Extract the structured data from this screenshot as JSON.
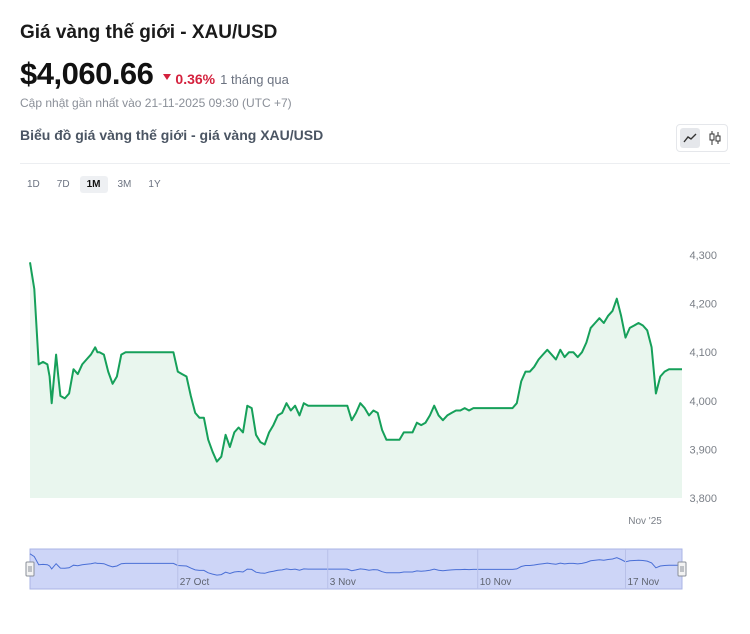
{
  "header": {
    "title": "Giá vàng thế giới - XAU/USD",
    "price": "$4,060.66",
    "change": "0.36%",
    "change_direction": "down",
    "period": "1 tháng qua",
    "updated": "Cập nhật gần nhất vào 21-11-2025 09:30 (UTC +7)"
  },
  "chart_header": {
    "subtitle": "Biểu đồ giá vàng thế giới - giá vàng XAU/USD",
    "toggle_icons": [
      "line-chart-icon",
      "candlestick-icon"
    ]
  },
  "ranges": [
    {
      "label": "1D",
      "active": false
    },
    {
      "label": "7D",
      "active": false
    },
    {
      "label": "1M",
      "active": true
    },
    {
      "label": "3M",
      "active": false
    },
    {
      "label": "1Y",
      "active": false
    }
  ],
  "colors": {
    "line": "#16a05a",
    "area": "#e9f6ee",
    "down": "#d4213d",
    "navigator_fill": "#cdd5f7"
  },
  "chart_data": {
    "type": "area",
    "ylim": [
      3800,
      4300
    ],
    "yticks": [
      "3,800",
      "3,900",
      "4,000",
      "4,100",
      "4,200",
      "4,300"
    ],
    "ytick_values": [
      3800,
      3900,
      4000,
      4100,
      4200,
      4300
    ],
    "xlim": [
      0,
      30
    ],
    "xtick_labels": [
      {
        "t": 28.3,
        "label": "Nov '25"
      }
    ],
    "navigator_labels": [
      {
        "t": 6.8,
        "label": "27 Oct"
      },
      {
        "t": 13.7,
        "label": "3 Nov"
      },
      {
        "t": 20.6,
        "label": "10 Nov"
      },
      {
        "t": 27.4,
        "label": "17 Nov"
      }
    ],
    "series": [
      {
        "values": [
          [
            0,
            4285
          ],
          [
            0.2,
            4230
          ],
          [
            0.4,
            4075
          ],
          [
            0.6,
            4080
          ],
          [
            0.8,
            4075
          ],
          [
            0.9,
            4050
          ],
          [
            1.0,
            3995
          ],
          [
            1.2,
            4095
          ],
          [
            1.3,
            4050
          ],
          [
            1.4,
            4010
          ],
          [
            1.6,
            4005
          ],
          [
            1.8,
            4015
          ],
          [
            2.0,
            4065
          ],
          [
            2.2,
            4055
          ],
          [
            2.4,
            4075
          ],
          [
            2.6,
            4085
          ],
          [
            2.8,
            4095
          ],
          [
            3.0,
            4110
          ],
          [
            3.1,
            4100
          ],
          [
            3.2,
            4100
          ],
          [
            3.4,
            4095
          ],
          [
            3.6,
            4060
          ],
          [
            3.8,
            4035
          ],
          [
            4.0,
            4050
          ],
          [
            4.2,
            4095
          ],
          [
            4.4,
            4100
          ],
          [
            4.6,
            4100
          ],
          [
            5.4,
            4100
          ],
          [
            5.6,
            4100
          ],
          [
            5.8,
            4100
          ],
          [
            6.4,
            4100
          ],
          [
            6.6,
            4100
          ],
          [
            6.8,
            4060
          ],
          [
            7.0,
            4055
          ],
          [
            7.2,
            4050
          ],
          [
            7.4,
            4010
          ],
          [
            7.6,
            3975
          ],
          [
            7.8,
            3965
          ],
          [
            8.0,
            3965
          ],
          [
            8.2,
            3920
          ],
          [
            8.4,
            3895
          ],
          [
            8.6,
            3875
          ],
          [
            8.8,
            3885
          ],
          [
            9.0,
            3930
          ],
          [
            9.2,
            3905
          ],
          [
            9.4,
            3935
          ],
          [
            9.6,
            3945
          ],
          [
            9.8,
            3935
          ],
          [
            10.0,
            3990
          ],
          [
            10.2,
            3985
          ],
          [
            10.4,
            3930
          ],
          [
            10.6,
            3915
          ],
          [
            10.8,
            3910
          ],
          [
            11.0,
            3935
          ],
          [
            11.2,
            3950
          ],
          [
            11.4,
            3970
          ],
          [
            11.6,
            3975
          ],
          [
            11.8,
            3995
          ],
          [
            12.0,
            3980
          ],
          [
            12.2,
            3990
          ],
          [
            12.4,
            3970
          ],
          [
            12.6,
            3995
          ],
          [
            12.8,
            3990
          ],
          [
            13.0,
            3990
          ],
          [
            13.6,
            3990
          ],
          [
            13.8,
            3990
          ],
          [
            14.4,
            3990
          ],
          [
            14.6,
            3990
          ],
          [
            14.8,
            3960
          ],
          [
            15.0,
            3975
          ],
          [
            15.2,
            3995
          ],
          [
            15.4,
            3985
          ],
          [
            15.6,
            3970
          ],
          [
            15.8,
            3980
          ],
          [
            16.0,
            3975
          ],
          [
            16.2,
            3940
          ],
          [
            16.4,
            3920
          ],
          [
            16.6,
            3920
          ],
          [
            16.8,
            3920
          ],
          [
            17.0,
            3920
          ],
          [
            17.2,
            3935
          ],
          [
            17.4,
            3935
          ],
          [
            17.6,
            3935
          ],
          [
            17.8,
            3955
          ],
          [
            18.0,
            3950
          ],
          [
            18.2,
            3955
          ],
          [
            18.4,
            3970
          ],
          [
            18.6,
            3990
          ],
          [
            18.8,
            3970
          ],
          [
            19.0,
            3960
          ],
          [
            19.2,
            3970
          ],
          [
            19.4,
            3975
          ],
          [
            19.6,
            3980
          ],
          [
            19.8,
            3980
          ],
          [
            20.0,
            3985
          ],
          [
            20.2,
            3980
          ],
          [
            20.4,
            3985
          ],
          [
            20.6,
            3985
          ],
          [
            20.8,
            3985
          ],
          [
            21.0,
            3985
          ],
          [
            21.6,
            3985
          ],
          [
            21.8,
            3985
          ],
          [
            22.2,
            3985
          ],
          [
            22.4,
            3995
          ],
          [
            22.6,
            4040
          ],
          [
            22.8,
            4060
          ],
          [
            23.0,
            4060
          ],
          [
            23.2,
            4070
          ],
          [
            23.4,
            4085
          ],
          [
            23.6,
            4095
          ],
          [
            23.8,
            4105
          ],
          [
            24.0,
            4095
          ],
          [
            24.2,
            4085
          ],
          [
            24.4,
            4105
          ],
          [
            24.6,
            4090
          ],
          [
            24.8,
            4100
          ],
          [
            25.0,
            4100
          ],
          [
            25.2,
            4090
          ],
          [
            25.4,
            4100
          ],
          [
            25.6,
            4120
          ],
          [
            25.8,
            4150
          ],
          [
            26.0,
            4160
          ],
          [
            26.2,
            4170
          ],
          [
            26.4,
            4160
          ],
          [
            26.6,
            4175
          ],
          [
            26.8,
            4185
          ],
          [
            27.0,
            4210
          ],
          [
            27.2,
            4175
          ],
          [
            27.4,
            4130
          ],
          [
            27.6,
            4150
          ],
          [
            27.8,
            4155
          ],
          [
            28.0,
            4160
          ],
          [
            28.2,
            4155
          ],
          [
            28.4,
            4145
          ],
          [
            28.6,
            4110
          ],
          [
            28.8,
            4015
          ],
          [
            29.0,
            4050
          ],
          [
            29.2,
            4060
          ],
          [
            29.4,
            4065
          ],
          [
            29.6,
            4065
          ],
          [
            29.8,
            4065
          ],
          [
            30.0,
            4065
          ]
        ]
      }
    ]
  }
}
